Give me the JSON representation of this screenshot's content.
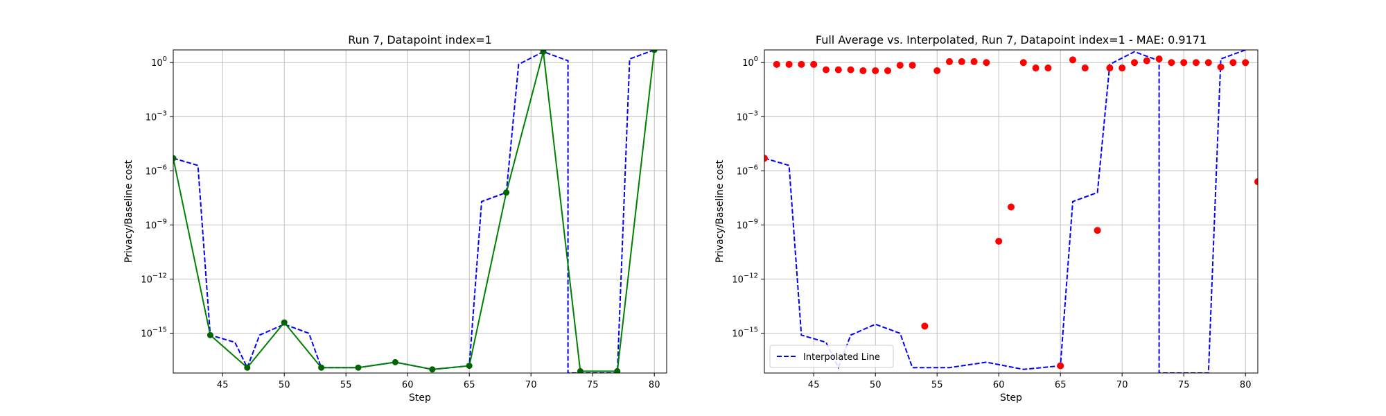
{
  "chart_data": [
    {
      "type": "line",
      "title": "Run 7, Datapoint index=1",
      "xlabel": "Step",
      "ylabel": "Privacy/Baseline cost",
      "xlim": [
        41,
        81
      ],
      "ylim_log10": [
        -17.2,
        0.7
      ],
      "yscale": "log",
      "grid": true,
      "xticks": [
        45,
        50,
        55,
        60,
        65,
        70,
        75,
        80
      ],
      "yticks_exp": [
        0,
        -3,
        -6,
        -9,
        -12,
        -15
      ],
      "series": [
        {
          "style": "dashed",
          "color": "#0000ff",
          "x": [
            41,
            43,
            44,
            46,
            47,
            48,
            50,
            52,
            53,
            56,
            59,
            62,
            65,
            66,
            68,
            69,
            71,
            73,
            73,
            74,
            77,
            78,
            80
          ],
          "log10": [
            -5.3,
            -5.7,
            -15.1,
            -15.5,
            -16.9,
            -15.1,
            -14.5,
            -15.0,
            -16.9,
            -16.9,
            -16.6,
            -17.0,
            -16.8,
            -7.7,
            -7.2,
            -0.1,
            0.6,
            0.1,
            -17.2,
            -17.2,
            -17.2,
            0.2,
            0.7
          ]
        },
        {
          "style": "solid",
          "color": "#008000",
          "marker_color": "#006400",
          "x": [
            41,
            44,
            47,
            50,
            53,
            56,
            59,
            62,
            65,
            68,
            71,
            74,
            77,
            80
          ],
          "log10": [
            -5.3,
            -15.1,
            -16.9,
            -14.4,
            -16.9,
            -16.9,
            -16.6,
            -17.0,
            -16.8,
            -7.2,
            0.6,
            -17.1,
            -17.1,
            0.7
          ]
        }
      ]
    },
    {
      "type": "scatter",
      "title": "Full Average vs. Interpolated, Run 7, Datapoint index=1 - MAE: 0.9171",
      "xlabel": "Step",
      "ylabel": "Privacy/Baseline cost",
      "xlim": [
        41,
        81
      ],
      "ylim_log10": [
        -17.2,
        0.7
      ],
      "yscale": "log",
      "grid": true,
      "legend": "lower-left",
      "xticks": [
        45,
        50,
        55,
        60,
        65,
        70,
        75,
        80
      ],
      "yticks_exp": [
        0,
        -3,
        -6,
        -9,
        -12,
        -15
      ],
      "series": [
        {
          "name": "Interpolated Line",
          "style": "dashed",
          "color": "#0000ff",
          "x": [
            41,
            43,
            44,
            46,
            47,
            48,
            50,
            52,
            53,
            56,
            59,
            62,
            65,
            66,
            68,
            69,
            71,
            73,
            73,
            74,
            77,
            78,
            80
          ],
          "log10": [
            -5.3,
            -5.7,
            -15.1,
            -15.5,
            -16.9,
            -15.1,
            -14.5,
            -15.0,
            -16.9,
            -16.9,
            -16.6,
            -17.0,
            -16.8,
            -7.7,
            -7.2,
            -0.1,
            0.6,
            0.1,
            -17.2,
            -17.2,
            -17.2,
            0.2,
            0.7
          ]
        },
        {
          "style": "points",
          "color": "#ff0000",
          "x": [
            41,
            42,
            43,
            44,
            45,
            46,
            47,
            48,
            49,
            50,
            51,
            52,
            53,
            54,
            55,
            56,
            57,
            58,
            59,
            60,
            61,
            62,
            63,
            64,
            65,
            66,
            67,
            68,
            69,
            70,
            71,
            72,
            73,
            74,
            75,
            76,
            77,
            78,
            79,
            80,
            81
          ],
          "log10": [
            -5.3,
            -0.1,
            -0.1,
            -0.1,
            -0.1,
            -0.4,
            -0.4,
            -0.4,
            -0.45,
            -0.45,
            -0.45,
            -0.15,
            -0.15,
            -14.6,
            -0.45,
            0.05,
            0.05,
            0.05,
            0.0,
            -9.9,
            -8.0,
            0.0,
            -0.3,
            -0.3,
            -16.8,
            0.15,
            -0.3,
            -9.3,
            -0.3,
            -0.3,
            0.0,
            0.1,
            0.2,
            0.0,
            0.0,
            0.0,
            0.0,
            -0.25,
            0.0,
            0.0,
            -6.6
          ]
        }
      ]
    }
  ]
}
